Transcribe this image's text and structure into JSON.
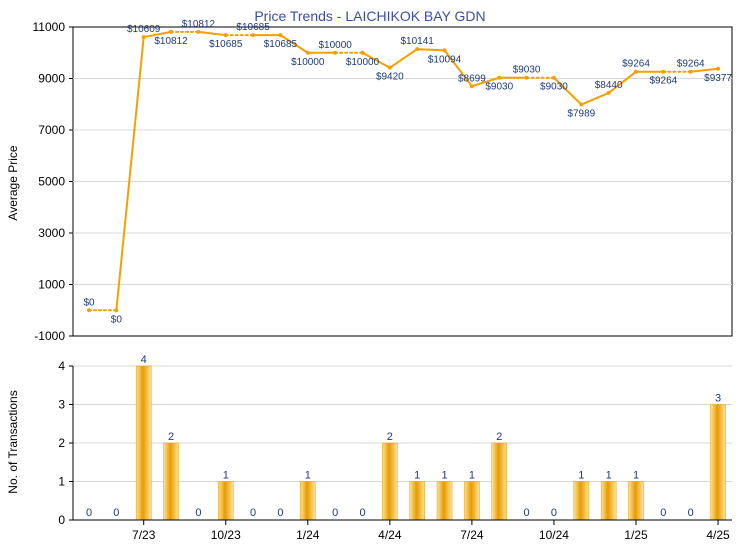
{
  "colors": {
    "line": "#f5a000",
    "bar_light": "#ffe49a",
    "bar_dark": "#e89b00",
    "title": "#3a4fa0",
    "price_label": "#1e3a7a",
    "grid": "#d8d8d8",
    "axis": "#000000"
  },
  "chart_data": [
    {
      "type": "line",
      "title": "Price Trends - LAICHIKOK BAY GDN",
      "ylabel": "Average Price",
      "ylim": [
        -1000,
        11000
      ],
      "yticks": [
        "-1000",
        "1000",
        "3000",
        "5000",
        "7000",
        "9000",
        "11000"
      ],
      "ytick_values": [
        -1000,
        1000,
        3000,
        5000,
        7000,
        9000,
        11000
      ],
      "grid": true,
      "series": [
        {
          "values": [
            0,
            0,
            10609,
            10812,
            10812,
            10685,
            10685,
            10685,
            10000,
            10000,
            10000,
            9420,
            10141,
            10094,
            8699,
            9030,
            9030,
            9030,
            7989,
            8440,
            9264,
            9264,
            9264,
            9377
          ],
          "labels": [
            "$0",
            "$0",
            "$10609",
            "$10812",
            "$10812",
            "$10685",
            "$10685",
            "$10685",
            "$10000",
            "$10000",
            "$10000",
            "$9420",
            "$10141",
            "$10094",
            "$8699",
            "$9030",
            "$9030",
            "$9030",
            "$7989",
            "$8440",
            "$9264",
            "$9264",
            "$9264",
            "$9377"
          ],
          "label_pos": [
            "above",
            "below",
            "above",
            "below",
            "above",
            "below",
            "above",
            "below",
            "below",
            "above",
            "below",
            "below",
            "above",
            "below",
            "above",
            "below",
            "above",
            "below",
            "below",
            "above",
            "above",
            "below",
            "above",
            "below"
          ],
          "dotted_after": [
            true,
            false,
            false,
            true,
            false,
            true,
            false,
            false,
            false,
            true,
            false,
            false,
            false,
            false,
            false,
            false,
            true,
            false,
            false,
            false,
            false,
            true,
            false,
            false
          ]
        }
      ]
    },
    {
      "type": "bar",
      "ylabel": "No. of Transactions",
      "ylim": [
        0,
        4
      ],
      "yticks": [
        "0",
        "1",
        "2",
        "3",
        "4"
      ],
      "ytick_values": [
        0,
        1,
        2,
        3,
        4
      ],
      "grid": true,
      "values": [
        0,
        0,
        4,
        2,
        0,
        1,
        0,
        0,
        1,
        0,
        0,
        2,
        1,
        1,
        1,
        2,
        0,
        0,
        1,
        1,
        1,
        0,
        0,
        3
      ],
      "xticks": [
        {
          "label": "7/23",
          "index": 2
        },
        {
          "label": "10/23",
          "index": 5
        },
        {
          "label": "1/24",
          "index": 8
        },
        {
          "label": "4/24",
          "index": 11
        },
        {
          "label": "7/24",
          "index": 14
        },
        {
          "label": "10/24",
          "index": 17
        },
        {
          "label": "1/25",
          "index": 20
        },
        {
          "label": "4/25",
          "index": 23
        }
      ]
    }
  ]
}
